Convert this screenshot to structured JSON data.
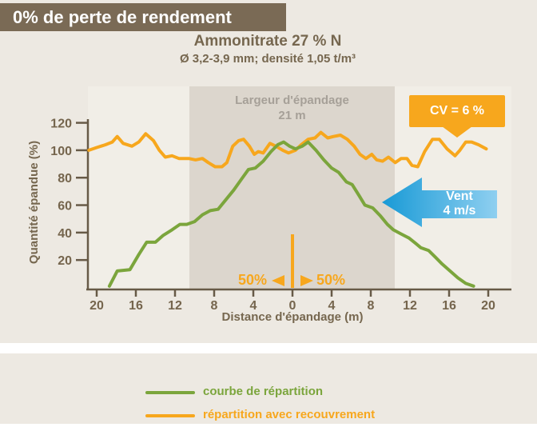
{
  "banner": {
    "label": "0% de perte de rendement"
  },
  "header": {
    "title": "Ammonitrate 27 % N",
    "subtitle": "Ø 3,2-3,9 mm; densité 1,05 t/m³"
  },
  "chart_data": {
    "type": "line",
    "title": "Ammonitrate 27 % N",
    "xlabel": "Distance d'épandage (m)",
    "ylabel": "Quantité épandue (%)",
    "ylim": [
      0,
      120
    ],
    "xlim_m": [
      -21,
      21
    ],
    "grid": false,
    "y_ticks": [
      20,
      40,
      60,
      80,
      100,
      120
    ],
    "x_tick_labels": [
      "20",
      "16",
      "12",
      "8",
      "4",
      "0",
      "4",
      "8",
      "12",
      "16",
      "20"
    ],
    "x_tick_values": [
      -20,
      -16,
      -12,
      -8,
      -4,
      0,
      4,
      8,
      12,
      16,
      20
    ],
    "spread_band": {
      "from_m": -10.5,
      "to_m": 10.5,
      "label_line1": "Largeur d'épandage",
      "label_line2": "21 m"
    },
    "center_split": {
      "left_label": "50%",
      "right_label": "50%"
    },
    "series": [
      {
        "name": "courbe de répartition",
        "color": "#7BA53C",
        "points": [
          [
            -18.7,
            1
          ],
          [
            -17.9,
            12
          ],
          [
            -16.6,
            13
          ],
          [
            -15.7,
            24
          ],
          [
            -14.9,
            33
          ],
          [
            -14,
            33
          ],
          [
            -13.2,
            38
          ],
          [
            -12.3,
            42
          ],
          [
            -11.5,
            46
          ],
          [
            -10.8,
            46
          ],
          [
            -10,
            48
          ],
          [
            -9.2,
            53
          ],
          [
            -8.4,
            56
          ],
          [
            -7.6,
            57
          ],
          [
            -6.8,
            64
          ],
          [
            -6,
            71
          ],
          [
            -5.2,
            79
          ],
          [
            -4.5,
            86
          ],
          [
            -3.8,
            87
          ],
          [
            -3,
            92
          ],
          [
            -2.2,
            99
          ],
          [
            -1.5,
            104
          ],
          [
            -0.9,
            106
          ],
          [
            -0.3,
            103
          ],
          [
            0.3,
            101
          ],
          [
            1,
            103
          ],
          [
            1.6,
            106
          ],
          [
            2.4,
            100
          ],
          [
            3.2,
            93
          ],
          [
            4,
            87
          ],
          [
            4.7,
            84
          ],
          [
            5.5,
            77
          ],
          [
            6.1,
            75
          ],
          [
            6.8,
            67
          ],
          [
            7.4,
            60
          ],
          [
            8.2,
            58
          ],
          [
            9,
            52
          ],
          [
            9.7,
            46
          ],
          [
            10.3,
            42
          ],
          [
            11.1,
            39
          ],
          [
            11.9,
            36
          ],
          [
            12.6,
            32
          ],
          [
            13.1,
            29
          ],
          [
            13.9,
            27
          ],
          [
            14.6,
            22
          ],
          [
            15.3,
            17
          ],
          [
            16.1,
            12
          ],
          [
            16.9,
            7
          ],
          [
            17.7,
            3
          ],
          [
            18.5,
            1
          ]
        ]
      },
      {
        "name": "répartition avec recouvrement",
        "color": "#F7A71D",
        "points": [
          [
            -20.8,
            100
          ],
          [
            -20,
            102
          ],
          [
            -19.1,
            104
          ],
          [
            -18.4,
            106
          ],
          [
            -17.9,
            110
          ],
          [
            -17.3,
            105
          ],
          [
            -16.4,
            103
          ],
          [
            -15.7,
            106
          ],
          [
            -15,
            112
          ],
          [
            -14.2,
            107
          ],
          [
            -13.6,
            100
          ],
          [
            -13,
            95
          ],
          [
            -12.3,
            96
          ],
          [
            -11.6,
            94
          ],
          [
            -10.6,
            94
          ],
          [
            -9.9,
            93
          ],
          [
            -9.2,
            94
          ],
          [
            -8.6,
            91
          ],
          [
            -7.9,
            88
          ],
          [
            -7.2,
            88
          ],
          [
            -6.7,
            91
          ],
          [
            -6.1,
            103
          ],
          [
            -5.5,
            107
          ],
          [
            -5,
            108
          ],
          [
            -4.4,
            103
          ],
          [
            -3.9,
            97
          ],
          [
            -3.5,
            99
          ],
          [
            -3,
            98
          ],
          [
            -2.3,
            105
          ],
          [
            -1.7,
            103
          ],
          [
            -1,
            100
          ],
          [
            -0.4,
            98
          ],
          [
            0.3,
            100
          ],
          [
            0.9,
            104
          ],
          [
            1.6,
            108
          ],
          [
            2.3,
            109
          ],
          [
            2.9,
            113
          ],
          [
            3.6,
            109
          ],
          [
            4.2,
            110
          ],
          [
            4.9,
            111
          ],
          [
            5.6,
            108
          ],
          [
            6.3,
            103
          ],
          [
            6.9,
            97
          ],
          [
            7.5,
            94
          ],
          [
            8.1,
            97
          ],
          [
            8.6,
            93
          ],
          [
            9.2,
            92
          ],
          [
            9.8,
            95
          ],
          [
            10.5,
            91
          ],
          [
            11.1,
            94
          ],
          [
            11.7,
            94
          ],
          [
            12.2,
            89
          ],
          [
            12.8,
            88
          ],
          [
            13.5,
            99
          ],
          [
            14.3,
            108
          ],
          [
            15,
            108
          ],
          [
            15.8,
            101
          ],
          [
            16.6,
            96
          ],
          [
            17.1,
            100
          ],
          [
            17.7,
            106
          ],
          [
            18.3,
            106
          ],
          [
            19,
            104
          ],
          [
            19.8,
            101
          ]
        ]
      }
    ]
  },
  "annotations": {
    "cv_badge_label": "CV = 6 %",
    "wind_label_line1": "Vent",
    "wind_label_line2": "4 m/s"
  },
  "legend": {
    "items": [
      {
        "label": "courbe de répartition",
        "color": "#7BA53C"
      },
      {
        "label": "répartition avec recouvrement",
        "color": "#F7A71D"
      }
    ]
  },
  "colors": {
    "background": "#EDE9E2",
    "banner_bg": "#7A6A55",
    "text_brown": "#76674F",
    "axis": "#675A47",
    "band_bg": "#DCD6CD",
    "band_label": "#A6A098",
    "orange": "#F7A71D",
    "green": "#7BA53C",
    "blue_dark": "#189AD6",
    "blue_light": "#8FCFF0"
  }
}
